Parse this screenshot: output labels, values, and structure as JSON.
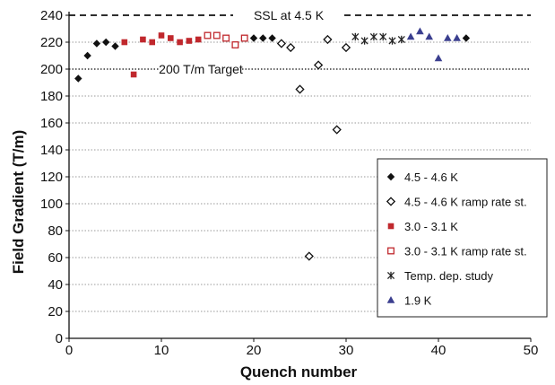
{
  "chart_data": {
    "type": "scatter",
    "xlabel": "Quench number",
    "ylabel": "Field Gradient (T/m)",
    "xlim": [
      0,
      50
    ],
    "ylim": [
      0,
      240
    ],
    "x_ticks": [
      0,
      10,
      20,
      30,
      40,
      50
    ],
    "y_ticks": [
      0,
      20,
      40,
      60,
      80,
      100,
      120,
      140,
      160,
      180,
      200,
      220,
      240
    ],
    "grid": "horizontal dotted",
    "legend_position": "right",
    "reference_lines": [
      {
        "label": "SSL at 4.5 K",
        "y": 240,
        "style": "dashed"
      },
      {
        "label": "200 T/m Target",
        "y": 200,
        "style": "dotted"
      }
    ],
    "series": [
      {
        "name": "4.5 - 4.6 K",
        "marker": "filled-diamond",
        "color": "#111111",
        "points": [
          [
            1,
            193
          ],
          [
            2,
            210
          ],
          [
            3,
            219
          ],
          [
            4,
            220
          ],
          [
            5,
            217
          ],
          [
            20,
            223
          ],
          [
            21,
            223
          ],
          [
            22,
            223
          ],
          [
            43,
            223
          ]
        ]
      },
      {
        "name": "4.5 - 4.6 K ramp rate st.",
        "marker": "open-diamond",
        "color": "#111111",
        "points": [
          [
            23,
            219
          ],
          [
            24,
            216
          ],
          [
            25,
            185
          ],
          [
            26,
            61
          ],
          [
            27,
            203
          ],
          [
            28,
            222
          ],
          [
            29,
            155
          ],
          [
            30,
            216
          ]
        ]
      },
      {
        "name": "3.0 - 3.1 K",
        "marker": "filled-square",
        "color": "#c0282d",
        "points": [
          [
            6,
            220
          ],
          [
            7,
            196
          ],
          [
            8,
            222
          ],
          [
            9,
            220
          ],
          [
            10,
            225
          ],
          [
            11,
            223
          ],
          [
            12,
            220
          ],
          [
            13,
            221
          ],
          [
            14,
            222
          ]
        ]
      },
      {
        "name": "3.0 - 3.1 K ramp rate st.",
        "marker": "open-square",
        "color": "#c0282d",
        "points": [
          [
            15,
            225
          ],
          [
            16,
            225
          ],
          [
            17,
            223
          ],
          [
            18,
            218
          ],
          [
            19,
            223
          ]
        ]
      },
      {
        "name": "Temp. dep. study",
        "marker": "asterisk",
        "color": "#222222",
        "points": [
          [
            31,
            224
          ],
          [
            32,
            221
          ],
          [
            33,
            224
          ],
          [
            34,
            224
          ],
          [
            35,
            221
          ],
          [
            36,
            222
          ]
        ]
      },
      {
        "name": "1.9 K",
        "marker": "filled-triangle",
        "color": "#3b3f8f",
        "points": [
          [
            37,
            224
          ],
          [
            38,
            228
          ],
          [
            39,
            224
          ],
          [
            40,
            208
          ],
          [
            41,
            223
          ],
          [
            42,
            223
          ]
        ]
      }
    ]
  }
}
